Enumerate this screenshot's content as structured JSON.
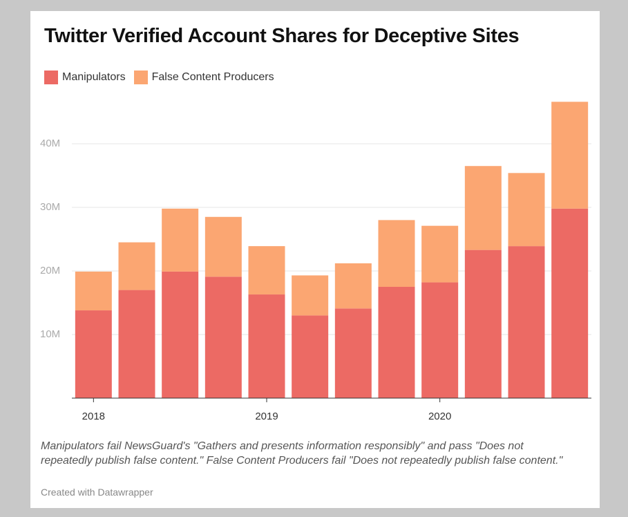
{
  "chart_data": {
    "type": "stacked_bar",
    "title": "Twitter Verified Account Shares for Deceptive Sites",
    "categories": [
      "2018",
      null,
      null,
      null,
      "2019",
      null,
      null,
      null,
      "2020",
      null,
      null,
      null
    ],
    "series": [
      {
        "name": "Manipulators",
        "color": "#ec6a64",
        "values": [
          13.8,
          17.0,
          19.9,
          19.1,
          16.3,
          13.0,
          14.1,
          17.5,
          18.2,
          23.3,
          23.9,
          29.8
        ]
      },
      {
        "name": "False Content Producers",
        "color": "#fba672",
        "values": [
          6.1,
          7.5,
          9.9,
          9.4,
          7.6,
          6.3,
          7.1,
          10.5,
          8.9,
          13.2,
          11.5,
          16.8
        ]
      }
    ],
    "ylim": [
      0,
      48
    ],
    "yticks": [
      {
        "value": 10,
        "label": "10M"
      },
      {
        "value": 20,
        "label": "20M"
      },
      {
        "value": 30,
        "label": "30M"
      },
      {
        "value": 40,
        "label": "40M"
      }
    ],
    "grid": true,
    "note": "Manipulators fail NewsGuard's \"Gathers and presents information responsibly\" and pass \"Does not repeatedly publish false content.\" False Content Producers fail \"Does not repeatedly publish false content.\"",
    "credit": "Created with Datawrapper"
  }
}
